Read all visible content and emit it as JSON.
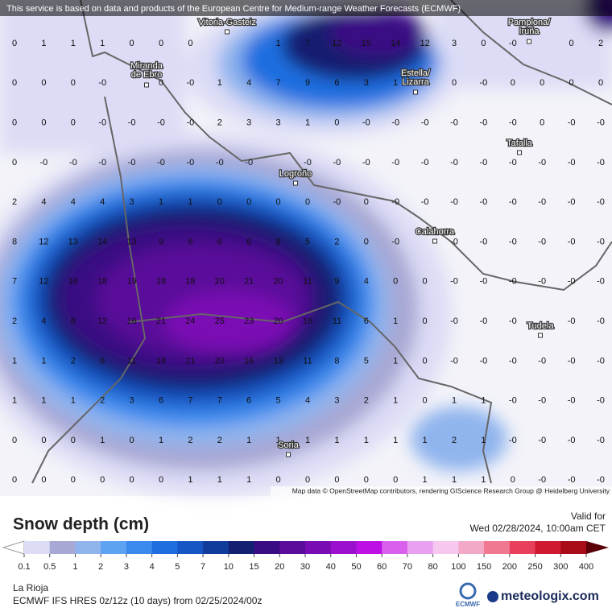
{
  "banner": "This service is based on data and products of the European Centre for Medium-range Weather Forecasts (ECMWF)",
  "places": [
    "Vitoria-Gasteiz",
    "Pamplona/\nIruña",
    "Miranda\nde Ebro",
    "Estella/\nLizarra",
    "Tafalla",
    "Logroño",
    "Calahorra",
    "Tudela",
    "Soria"
  ],
  "grid": {
    "rows": [
      [
        "0",
        "1",
        "1",
        "1",
        "0",
        "0",
        "0",
        null,
        null,
        "1",
        "7",
        "12",
        "15",
        "14",
        "12",
        "3",
        "0",
        "-0",
        null,
        "0",
        "2"
      ],
      [
        "0",
        "0",
        "0",
        "-0",
        null,
        "0",
        "-0",
        "1",
        "4",
        "7",
        "9",
        "6",
        "3",
        "1",
        null,
        "0",
        "-0",
        "0",
        "0",
        "0",
        "0"
      ],
      [
        "0",
        "0",
        "0",
        "-0",
        "-0",
        "-0",
        "-0",
        "2",
        "3",
        "3",
        "1",
        "0",
        "-0",
        "-0",
        "-0",
        "-0",
        "-0",
        "-0",
        "0",
        "-0",
        "-0"
      ],
      [
        "0",
        "-0",
        "-0",
        "-0",
        "-0",
        "-0",
        "-0",
        "-0",
        "-0",
        null,
        "-0",
        "-0",
        "-0",
        "-0",
        "-0",
        "-0",
        "-0",
        "-0",
        "-0",
        "-0",
        "-0"
      ],
      [
        "2",
        "4",
        "4",
        "4",
        "3",
        "1",
        "1",
        "0",
        "0",
        "0",
        "0",
        "-0",
        "0",
        "-0",
        "-0",
        "-0",
        "-0",
        "-0",
        "-0",
        "-0",
        "-0"
      ],
      [
        "8",
        "12",
        "13",
        "14",
        "13",
        "9",
        "6",
        "6",
        "6",
        "8",
        "5",
        "2",
        "0",
        "-0",
        null,
        "-0",
        "-0",
        "-0",
        "-0",
        "-0",
        "-0"
      ],
      [
        "7",
        "12",
        "16",
        "18",
        "19",
        "18",
        "18",
        "20",
        "21",
        "20",
        "11",
        "9",
        "4",
        "0",
        "0",
        "-0",
        "-0",
        "-0",
        "-0",
        "-0",
        "-0"
      ],
      [
        "2",
        "4",
        "8",
        "12",
        "16",
        "21",
        "24",
        "25",
        "23",
        "20",
        "16",
        "11",
        "6",
        "1",
        "0",
        "-0",
        "-0",
        "-0",
        null,
        "-0",
        "-0"
      ],
      [
        "1",
        "1",
        "2",
        "6",
        "11",
        "18",
        "21",
        "20",
        "16",
        "13",
        "11",
        "8",
        "5",
        "1",
        "0",
        "-0",
        "-0",
        "-0",
        "-0",
        "-0",
        "-0"
      ],
      [
        "1",
        "1",
        "1",
        "2",
        "3",
        "6",
        "7",
        "7",
        "6",
        "5",
        "4",
        "3",
        "2",
        "1",
        "0",
        "1",
        "1",
        "-0",
        "-0",
        "-0",
        "-0"
      ],
      [
        "0",
        "0",
        "0",
        "1",
        "0",
        "1",
        "2",
        "2",
        "1",
        "1",
        "1",
        "1",
        "1",
        "1",
        "1",
        "2",
        "1",
        "-0",
        "-0",
        "-0",
        "-0"
      ],
      [
        "0",
        "0",
        "0",
        "0",
        "0",
        "0",
        "1",
        "1",
        "1",
        "0",
        "0",
        "0",
        "0",
        "0",
        "1",
        "1",
        "1",
        "0",
        "-0",
        "-0",
        "-0"
      ]
    ]
  },
  "attribution": "Map data © OpenStreetMap contributors, rendering GIScience Research Group @ Heidelberg University",
  "legend": {
    "title": "Snow depth (cm)",
    "valid_label": "Valid for",
    "valid_time": "Wed 02/28/2024, 10:00am CET",
    "ticks": [
      0.1,
      0.5,
      1,
      2,
      3,
      4,
      5,
      7,
      10,
      15,
      20,
      30,
      40,
      50,
      60,
      70,
      80,
      100,
      150,
      200,
      250,
      300,
      400
    ],
    "colors": [
      "#dcdcf6",
      "#a8a8d4",
      "#8fb4ee",
      "#5ea2f2",
      "#3a8aee",
      "#1e6ee0",
      "#1656c4",
      "#123c9c",
      "#131f70",
      "#3a0c84",
      "#5a0c9a",
      "#7a0cb4",
      "#9a10cc",
      "#bc10e4",
      "#d860ec",
      "#eaa0f0",
      "#f6c8f0",
      "#f4a8c8",
      "#f07890",
      "#e8405c",
      "#d01830",
      "#a80c18"
    ]
  },
  "footer": {
    "region": "La Rioja",
    "model": "ECMWF IFS HRES 0z/12z (10 days) from 02/25/2024/00z",
    "ecmwf": "ECMWF",
    "brand": "meteologix.com"
  }
}
